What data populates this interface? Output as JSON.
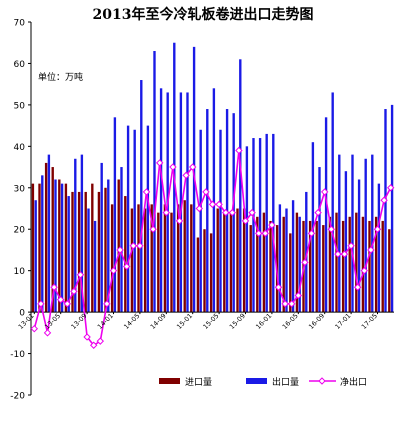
{
  "chart_data": {
    "type": "bar",
    "title": "2013年至今冷轧板卷进出口走势图",
    "unit_label": "单位：万吨",
    "ylim": [
      -20,
      70
    ],
    "y_ticks": [
      "-20",
      "-10",
      "0",
      "10",
      "20",
      "30",
      "40",
      "50",
      "60",
      "70"
    ],
    "x_tick_labels": [
      "13-01",
      "13-05",
      "13-09",
      "14-01",
      "14-05",
      "14-09",
      "15-01",
      "15-05",
      "15-09",
      "16-01",
      "16-05",
      "16-09",
      "17-01",
      "17-05"
    ],
    "categories": [
      "13-01",
      "13-02",
      "13-03",
      "13-04",
      "13-05",
      "13-06",
      "13-07",
      "13-08",
      "13-09",
      "13-10",
      "13-11",
      "13-12",
      "14-01",
      "14-02",
      "14-03",
      "14-04",
      "14-05",
      "14-06",
      "14-07",
      "14-08",
      "14-09",
      "14-10",
      "14-11",
      "14-12",
      "15-01",
      "15-02",
      "15-03",
      "15-04",
      "15-05",
      "15-06",
      "15-07",
      "15-08",
      "15-09",
      "15-10",
      "15-11",
      "15-12",
      "16-01",
      "16-02",
      "16-03",
      "16-04",
      "16-05",
      "16-06",
      "16-07",
      "16-08",
      "16-09",
      "16-10",
      "16-11",
      "16-12",
      "17-01",
      "17-02",
      "17-03",
      "17-04",
      "17-05",
      "17-06",
      "17-07"
    ],
    "series": [
      {
        "name": "进口量",
        "kind": "bar",
        "color": "#800000",
        "values": [
          31,
          31,
          36,
          35,
          32,
          31,
          29,
          29,
          29,
          31,
          29,
          30,
          26,
          32,
          28,
          25,
          26,
          25,
          26,
          24,
          26,
          24,
          26,
          27,
          26,
          18,
          20,
          19,
          25,
          24,
          24,
          25,
          25,
          21,
          23,
          24,
          22,
          21,
          23,
          19,
          24,
          22,
          22,
          22,
          21,
          23,
          24,
          22,
          23,
          24,
          23,
          22,
          23,
          22,
          20
        ]
      },
      {
        "name": "出口量",
        "kind": "bar",
        "color": "#1a1ae6",
        "values": [
          27,
          33,
          38,
          32,
          31,
          28,
          37,
          38,
          25,
          22,
          36,
          32,
          47,
          35,
          45,
          44,
          56,
          45,
          63,
          54,
          53,
          65,
          53,
          53,
          64,
          44,
          49,
          54,
          44,
          49,
          48,
          61,
          40,
          42,
          42,
          43,
          43,
          26,
          25,
          27,
          23,
          29,
          41,
          35,
          47,
          53,
          38,
          34,
          38,
          32,
          37,
          38,
          31,
          49,
          50
        ]
      },
      {
        "name": "净出口",
        "kind": "line",
        "color": "#ee00ee",
        "values": [
          -4,
          2,
          -5,
          6,
          3,
          2,
          5,
          9,
          -6,
          -8,
          -7,
          2,
          10,
          15,
          11,
          16,
          16,
          29,
          20,
          36,
          24,
          35,
          22,
          33,
          35,
          25,
          29,
          26,
          26,
          24,
          24,
          39,
          22,
          24,
          19,
          19,
          21,
          6,
          2,
          2,
          4,
          12,
          19,
          24,
          29,
          20,
          14,
          14,
          16,
          6,
          10,
          15,
          20,
          27,
          30
        ]
      }
    ],
    "legend": {
      "position": "bottom",
      "labels": [
        "进口量",
        "出口量",
        "净出口"
      ]
    },
    "grid": false
  }
}
